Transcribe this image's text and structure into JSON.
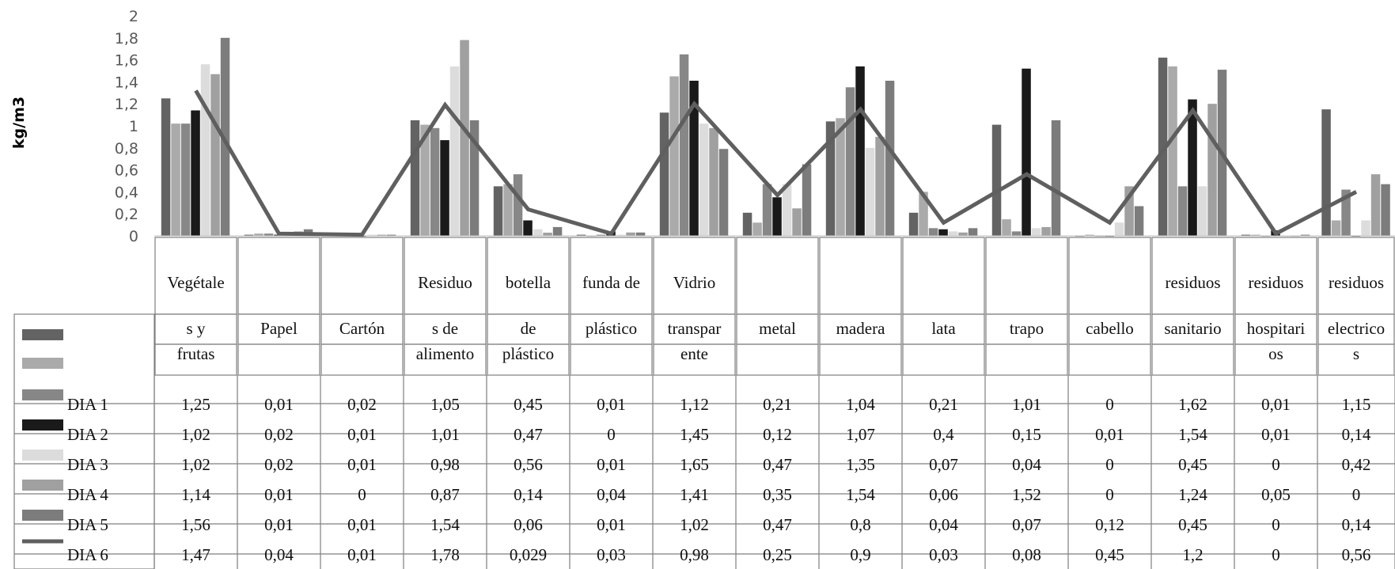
{
  "chart_data": {
    "type": "bar",
    "ylabel": "kg/m3",
    "ylim": [
      0,
      2
    ],
    "yticks": [
      "0",
      "0,2",
      "0,4",
      "0,6",
      "0,8",
      "1",
      "1,2",
      "1,4",
      "1,6",
      "1,8",
      "2"
    ],
    "grid": false,
    "legend": "data table below chart",
    "categories": [
      [
        "Vegétale",
        "s y",
        "frutas"
      ],
      [
        "",
        "Papel",
        ""
      ],
      [
        "",
        "Cartón",
        ""
      ],
      [
        "Residuo",
        "s de",
        "alimento"
      ],
      [
        "botella",
        "de",
        "plástico"
      ],
      [
        "funda de",
        "plástico",
        ""
      ],
      [
        "Vidrio",
        "transpar",
        "ente"
      ],
      [
        "",
        "metal",
        ""
      ],
      [
        "",
        "madera",
        ""
      ],
      [
        "",
        "lata",
        ""
      ],
      [
        "",
        "trapo",
        ""
      ],
      [
        "",
        "cabello",
        ""
      ],
      [
        "residuos",
        "sanitario",
        ""
      ],
      [
        "residuos",
        "hospitari",
        "os"
      ],
      [
        "residuos",
        "electrico",
        "s"
      ]
    ],
    "series": [
      {
        "name": "DIA 1",
        "color": "#636363",
        "values": [
          1.25,
          0.01,
          0.02,
          1.05,
          0.45,
          0.01,
          1.12,
          0.21,
          1.04,
          0.21,
          1.01,
          0,
          1.62,
          0.01,
          1.15
        ],
        "labels": [
          "1,25",
          "0,01",
          "0,02",
          "1,05",
          "0,45",
          "0,01",
          "1,12",
          "0,21",
          "1,04",
          "0,21",
          "1,01",
          "0",
          "1,62",
          "0,01",
          "1,15"
        ]
      },
      {
        "name": "DIA 2",
        "color": "#aaaaaa",
        "values": [
          1.02,
          0.02,
          0.01,
          1.01,
          0.47,
          0,
          1.45,
          0.12,
          1.07,
          0.4,
          0.15,
          0.01,
          1.54,
          0.01,
          0.14
        ],
        "labels": [
          "1,02",
          "0,02",
          "0,01",
          "1,01",
          "0,47",
          "0",
          "1,45",
          "0,12",
          "1,07",
          "0,4",
          "0,15",
          "0,01",
          "1,54",
          "0,01",
          "0,14"
        ]
      },
      {
        "name": "DIA 3",
        "color": "#878787",
        "values": [
          1.02,
          0.02,
          0.01,
          0.98,
          0.56,
          0.01,
          1.65,
          0.47,
          1.35,
          0.07,
          0.04,
          0,
          0.45,
          0,
          0.42
        ],
        "labels": [
          "1,02",
          "0,02",
          "0,01",
          "0,98",
          "0,56",
          "0,01",
          "1,65",
          "0,47",
          "1,35",
          "0,07",
          "0,04",
          "0",
          "0,45",
          "0",
          "0,42"
        ]
      },
      {
        "name": "DIA 4",
        "color": "#1a1a1a",
        "values": [
          1.14,
          0.01,
          0,
          0.87,
          0.14,
          0.04,
          1.41,
          0.35,
          1.54,
          0.06,
          1.52,
          0,
          1.24,
          0.05,
          0
        ],
        "labels": [
          "1,14",
          "0,01",
          "0",
          "0,87",
          "0,14",
          "0,04",
          "1,41",
          "0,35",
          "1,54",
          "0,06",
          "1,52",
          "0",
          "1,24",
          "0,05",
          "0"
        ]
      },
      {
        "name": "DIA 5",
        "color": "#dcdcdc",
        "values": [
          1.56,
          0.01,
          0.01,
          1.54,
          0.06,
          0.01,
          1.02,
          0.47,
          0.8,
          0.04,
          0.07,
          0.12,
          0.45,
          0,
          0.14
        ],
        "labels": [
          "1,56",
          "0,01",
          "0,01",
          "1,54",
          "0,06",
          "0,01",
          "1,02",
          "0,47",
          "0,8",
          "0,04",
          "0,07",
          "0,12",
          "0,45",
          "0",
          "0,14"
        ]
      },
      {
        "name": "DIA 6",
        "color": "#a0a0a0",
        "values": [
          1.47,
          0.04,
          0.01,
          1.78,
          0.029,
          0.03,
          0.98,
          0.25,
          0.9,
          0.03,
          0.08,
          0.45,
          1.2,
          0,
          0.56
        ],
        "labels": [
          "1,47",
          "0,04",
          "0,01",
          "1,78",
          "0,029",
          "0,03",
          "0,98",
          "0,25",
          "0,9",
          "0,03",
          "0,08",
          "0,45",
          "1,2",
          "0",
          "0,56"
        ]
      },
      {
        "name": "",
        "color": "#7c7c7c",
        "values": [
          1.8,
          0.06,
          0.01,
          1.05,
          0.08,
          0.03,
          0.79,
          0.65,
          1.41,
          0.07,
          1.05,
          0.27,
          1.51,
          0.01,
          0.47
        ]
      }
    ],
    "line": {
      "color": "#5f5f5f",
      "values": [
        1.32,
        0.02,
        0.01,
        1.19,
        0.24,
        0.02,
        1.2,
        0.37,
        1.15,
        0.12,
        0.56,
        0.12,
        1.14,
        0.02,
        0.4
      ]
    }
  }
}
